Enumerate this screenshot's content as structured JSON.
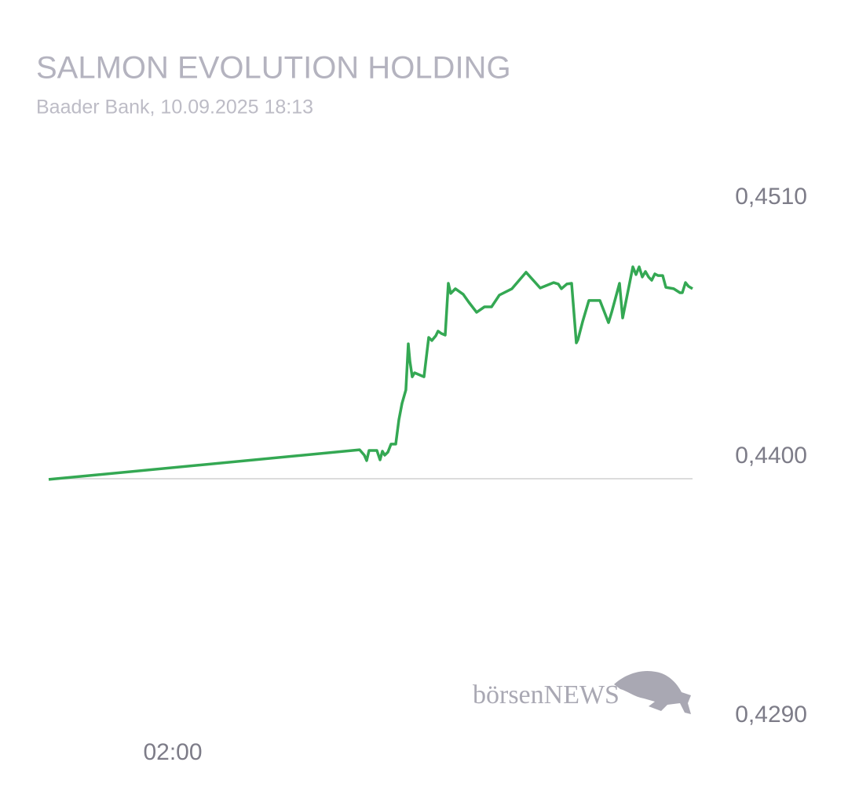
{
  "chart_data": {
    "type": "line",
    "title": "SALMON EVOLUTION HOLDING",
    "subtitle": "Baader Bank, 10.09.2025 18:13",
    "watermark": "börsenNEWS",
    "grid": true,
    "xlim": [
      0,
      10.38
    ],
    "xticks": [
      {
        "value": 2,
        "label": "02:00"
      }
    ],
    "ylim": [
      0.429,
      0.451
    ],
    "yticks": [
      {
        "value": 0.451,
        "label": "0,4510"
      },
      {
        "value": 0.44,
        "label": "0,4400"
      },
      {
        "value": 0.429,
        "label": "0,4290"
      }
    ],
    "series": [
      {
        "color": "#34a853",
        "x": [
          0,
          5.013,
          5.089,
          5.127,
          5.165,
          5.291,
          5.342,
          5.38,
          5.418,
          5.468,
          5.519,
          5.595,
          5.646,
          5.696,
          5.759,
          5.797,
          5.823,
          5.861,
          5.899,
          5.987,
          6.051,
          6.127,
          6.177,
          6.241,
          6.278,
          6.329,
          6.392,
          6.443,
          6.481,
          6.557,
          6.684,
          6.772,
          6.899,
          7.025,
          7.139,
          7.266,
          7.468,
          7.696,
          7.924,
          8.139,
          8.215,
          8.266,
          8.354,
          8.43,
          8.506,
          8.532,
          8.608,
          8.709,
          8.886,
          9.025,
          9.076,
          9.203,
          9.253,
          9.418,
          9.468,
          9.519,
          9.57,
          9.62,
          9.671,
          9.722,
          9.772,
          9.823,
          9.899,
          9.949,
          10.076,
          10.177,
          10.215,
          10.266,
          10.316,
          10.38
        ],
        "values": [
          0.43997,
          0.44123,
          0.441,
          0.44077,
          0.4412,
          0.4412,
          0.4408,
          0.44117,
          0.441,
          0.44113,
          0.44147,
          0.44147,
          0.4425,
          0.4432,
          0.44377,
          0.44573,
          0.445,
          0.44433,
          0.4445,
          0.4444,
          0.44433,
          0.446,
          0.44587,
          0.44607,
          0.44627,
          0.44617,
          0.4461,
          0.4483,
          0.44787,
          0.44807,
          0.44783,
          0.4475,
          0.44707,
          0.4473,
          0.4473,
          0.4478,
          0.44807,
          0.44877,
          0.4481,
          0.44833,
          0.44827,
          0.44807,
          0.44827,
          0.4483,
          0.44577,
          0.4459,
          0.44667,
          0.44757,
          0.44757,
          0.44663,
          0.44707,
          0.4483,
          0.44683,
          0.449,
          0.44867,
          0.449,
          0.44857,
          0.4488,
          0.44857,
          0.44843,
          0.4487,
          0.44863,
          0.44863,
          0.44813,
          0.44807,
          0.4479,
          0.4479,
          0.44833,
          0.44817,
          0.44807
        ]
      }
    ]
  }
}
